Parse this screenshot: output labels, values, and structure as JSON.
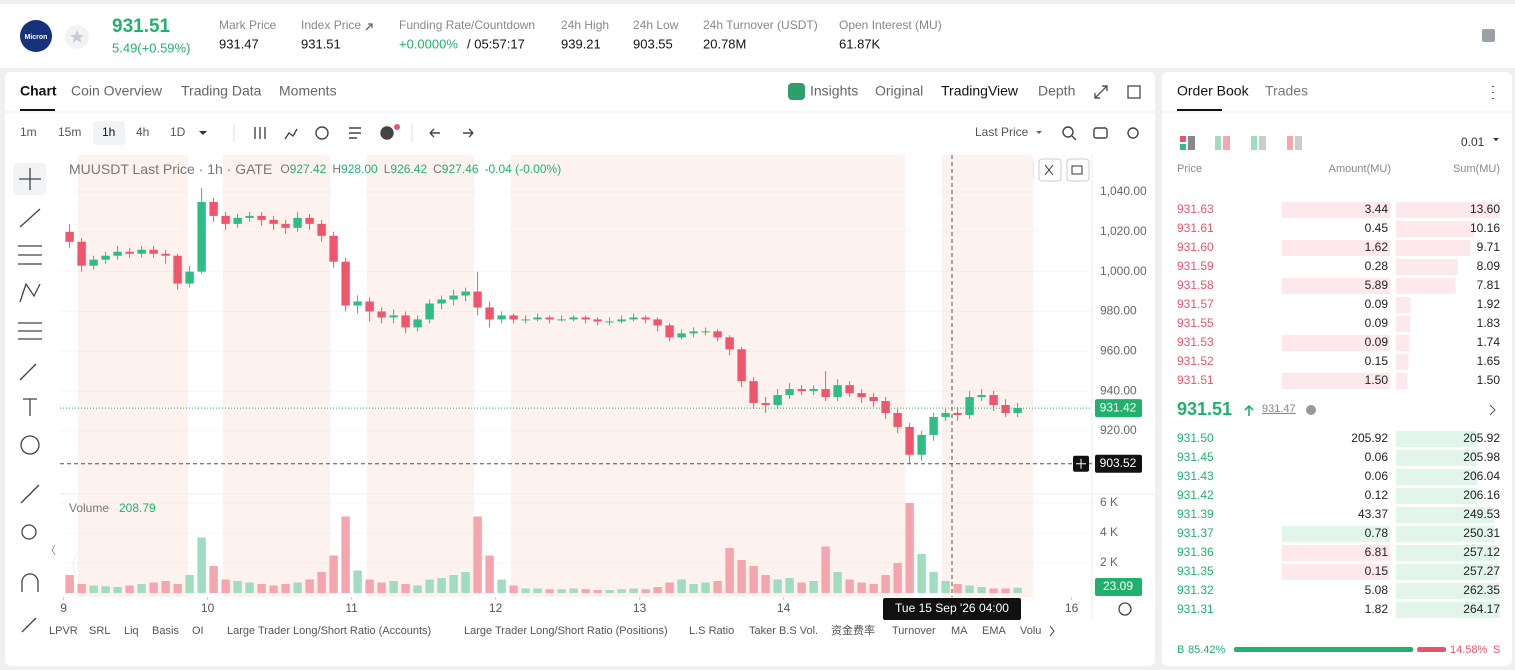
{
  "header": {
    "logo": "Micron",
    "price": "931.51",
    "change": "5.49(+0.59%)",
    "stats": [
      {
        "label": "Mark Price",
        "value": "931.47"
      },
      {
        "label": "Index Price",
        "value": "931.51"
      },
      {
        "label": "Funding Rate/Countdown",
        "value": "+0.0000%",
        "value2": "/ 05:57:17"
      },
      {
        "label": "24h High",
        "value": "939.21"
      },
      {
        "label": "24h Low",
        "value": "903.55"
      },
      {
        "label": "24h Turnover (USDT)",
        "value": "20.78M"
      },
      {
        "label": "Open Interest (MU)",
        "value": "61.87K"
      }
    ]
  },
  "chart_panel": {
    "tabs": [
      "Chart",
      "Coin Overview",
      "Trading Data",
      "Moments"
    ],
    "view_tabs": [
      "Insights",
      "Original",
      "TradingView",
      "Depth"
    ],
    "intervals": [
      "1m",
      "15m",
      "1h",
      "4h",
      "1D"
    ],
    "price_source": "Last Price",
    "legend": {
      "symbol": "MUUSDT Last Price · 1h · GATE",
      "o_label": "O",
      "o": "927.42",
      "h_label": "H",
      "h": "928.00",
      "l_label": "L",
      "l": "926.42",
      "c_label": "C",
      "c": "927.46",
      "change": "-0.04 (-0.00%)"
    },
    "volume_label": "Volume",
    "volume_value": "208.79",
    "last_price_tag": 931.42,
    "cursor_price_tag": 903.52,
    "volume_tag": "23.09",
    "crosshair_time": "Tue 15 Sep '26 04:00",
    "indicators": [
      "LPVR",
      "SRL",
      "Liq",
      "Basis",
      "OI",
      "Large Trader Long/Short Ratio (Accounts)",
      "Large Trader Long/Short Ratio (Positions)",
      "L.S Ratio",
      "Taker B.S Vol.",
      "资金费率",
      "Turnover",
      "MA",
      "EMA",
      "Volu"
    ]
  },
  "chart_data": {
    "type": "candlestick",
    "x": [
      0,
      2,
      4,
      6,
      8,
      10,
      12,
      14,
      16,
      18,
      20,
      22,
      24,
      26,
      28,
      30,
      32,
      34,
      36,
      38,
      40,
      42,
      44,
      46,
      48,
      50,
      52,
      54,
      56,
      58,
      60,
      62,
      64,
      66,
      68,
      70,
      72,
      74,
      76,
      78,
      80,
      82,
      84,
      86,
      88,
      90,
      92,
      94,
      96,
      98,
      100,
      102,
      104,
      106,
      108,
      110,
      112,
      114,
      116,
      118,
      120,
      122,
      124,
      126,
      128,
      130,
      132,
      134,
      136,
      138,
      140,
      142,
      144,
      146,
      148,
      150,
      152,
      154,
      156,
      158
    ],
    "open": [
      1020,
      1015,
      1003,
      1006,
      1008,
      1010,
      1009,
      1011,
      1009,
      1008,
      994,
      1000,
      1035,
      1028,
      1024,
      1027,
      1028,
      1026,
      1024,
      1022,
      1027,
      1024,
      1018,
      1005,
      983,
      985,
      980,
      977,
      978,
      972,
      976,
      984,
      986,
      988,
      990,
      982,
      976,
      978,
      976,
      976,
      977,
      976,
      976,
      977,
      976,
      975,
      975,
      976,
      977,
      976,
      973,
      967,
      969,
      970,
      970,
      967,
      961,
      945,
      934,
      933,
      938,
      941,
      940,
      941,
      937,
      943,
      939,
      937,
      935,
      929,
      922,
      908,
      918,
      927,
      929,
      928,
      937,
      938,
      933,
      929
    ],
    "high": [
      1024,
      1017,
      1008,
      1010,
      1013,
      1012,
      1013,
      1013,
      1011,
      1009,
      1003,
      1042,
      1037,
      1030,
      1029,
      1030,
      1030,
      1028,
      1026,
      1030,
      1029,
      1026,
      1020,
      1007,
      988,
      987,
      982,
      981,
      980,
      978,
      986,
      988,
      991,
      992,
      1000,
      985,
      980,
      979,
      978,
      979,
      978,
      978,
      978,
      978,
      977,
      977,
      978,
      979,
      978,
      977,
      974,
      971,
      972,
      972,
      971,
      968,
      962,
      947,
      937,
      941,
      944,
      943,
      943,
      950,
      946,
      945,
      941,
      939,
      937,
      931,
      924,
      920,
      929,
      931,
      932,
      940,
      941,
      940,
      936,
      934
    ],
    "low": [
      1012,
      1000,
      1001,
      1004,
      1006,
      1007,
      1007,
      1007,
      1004,
      991,
      992,
      999,
      1025,
      1021,
      1022,
      1025,
      1023,
      1021,
      1019,
      1020,
      1021,
      1015,
      1002,
      980,
      979,
      975,
      974,
      974,
      969,
      970,
      974,
      981,
      983,
      985,
      978,
      972,
      974,
      974,
      974,
      975,
      974,
      975,
      975,
      974,
      973,
      973,
      974,
      975,
      974,
      970,
      965,
      966,
      967,
      968,
      965,
      958,
      942,
      931,
      929,
      931,
      936,
      938,
      938,
      935,
      935,
      937,
      934,
      932,
      926,
      919,
      903.5,
      905,
      915,
      925,
      925,
      926,
      935,
      930,
      927,
      927
    ],
    "close": [
      1015,
      1003,
      1006,
      1008,
      1010,
      1009,
      1011,
      1009,
      1008,
      994,
      1000,
      1035,
      1028,
      1024,
      1027,
      1028,
      1026,
      1024,
      1022,
      1027,
      1024,
      1018,
      1005,
      983,
      985,
      980,
      977,
      978,
      972,
      976,
      984,
      986,
      988,
      990,
      982,
      976,
      978,
      976,
      976,
      977,
      976,
      976,
      977,
      976,
      975,
      975,
      976,
      977,
      976,
      973,
      967,
      969,
      970,
      970,
      967,
      961,
      945,
      934,
      933,
      938,
      941,
      940,
      941,
      937,
      943,
      939,
      937,
      935,
      929,
      922,
      908,
      918,
      927,
      929,
      928,
      937,
      938,
      933,
      929,
      931.51
    ],
    "xlim": [
      -0.6,
      171.4
    ],
    "xticks": [
      {
        "value": 0,
        "label": "9"
      },
      {
        "value": 24,
        "label": "10"
      },
      {
        "value": 48,
        "label": "11"
      },
      {
        "value": 72,
        "label": "12"
      },
      {
        "value": 96,
        "label": "13"
      },
      {
        "value": 120,
        "label": "14"
      },
      {
        "value": 168,
        "label": "16"
      }
    ],
    "ylim": [
      889.3,
      1058.6
    ],
    "yticks": [
      {
        "value": 920,
        "label": "920.00"
      },
      {
        "value": 940,
        "label": "940.00"
      },
      {
        "value": 960,
        "label": "960.00"
      },
      {
        "value": 980,
        "label": "980.00"
      },
      {
        "value": 1000,
        "label": "1,000.00"
      },
      {
        "value": 1020,
        "label": "1,020.00"
      },
      {
        "value": 1040,
        "label": "1,040.00"
      }
    ],
    "volume": {
      "values": [
        1200,
        600,
        500,
        450,
        400,
        500,
        600,
        700,
        800,
        600,
        1200,
        3700,
        1800,
        900,
        800,
        700,
        600,
        500,
        600,
        700,
        900,
        1400,
        2500,
        5100,
        1500,
        900,
        700,
        800,
        600,
        500,
        900,
        1000,
        1200,
        1400,
        5100,
        2500,
        900,
        500,
        300,
        300,
        250,
        250,
        300,
        250,
        200,
        200,
        250,
        300,
        250,
        400,
        700,
        900,
        600,
        700,
        800,
        3000,
        2200,
        1800,
        1200,
        900,
        1000,
        700,
        800,
        3100,
        1400,
        900,
        700,
        600,
        1200,
        2000,
        6000,
        2600,
        1400,
        800,
        600,
        500,
        400,
        300,
        300,
        350
      ],
      "ylim": [
        0,
        6400
      ],
      "yticks": [
        {
          "value": 2000,
          "label": "2 K"
        },
        {
          "value": 4000,
          "label": "4 K"
        },
        {
          "value": 6000,
          "label": "6 K"
        }
      ]
    }
  },
  "order_book": {
    "tabs": [
      "Order Book",
      "Trades"
    ],
    "precision": "0.01",
    "columns": [
      "Price",
      "Amount(MU)",
      "Sum(MU)"
    ],
    "asks": [
      [
        "931.63",
        "3.44",
        "13.60"
      ],
      [
        "931.61",
        "0.45",
        "10.16"
      ],
      [
        "931.60",
        "1.62",
        "9.71"
      ],
      [
        "931.59",
        "0.28",
        "8.09"
      ],
      [
        "931.58",
        "5.89",
        "7.81"
      ],
      [
        "931.57",
        "0.09",
        "1.92"
      ],
      [
        "931.55",
        "0.09",
        "1.83"
      ],
      [
        "931.53",
        "0.09",
        "1.74"
      ],
      [
        "931.52",
        "0.15",
        "1.65"
      ],
      [
        "931.51",
        "1.50",
        "1.50"
      ]
    ],
    "mid_price": "931.51",
    "mark_price": "931.47",
    "bids": [
      [
        "931.50",
        "205.92",
        "205.92"
      ],
      [
        "931.45",
        "0.06",
        "205.98"
      ],
      [
        "931.43",
        "0.06",
        "206.04"
      ],
      [
        "931.42",
        "0.12",
        "206.16"
      ],
      [
        "931.39",
        "43.37",
        "249.53"
      ],
      [
        "931.37",
        "0.78",
        "250.31"
      ],
      [
        "931.36",
        "6.81",
        "257.12"
      ],
      [
        "931.35",
        "0.15",
        "257.27"
      ],
      [
        "931.32",
        "5.08",
        "262.35"
      ],
      [
        "931.31",
        "1.82",
        "264.17"
      ]
    ],
    "buy_label": "B",
    "buy_ratio": "85.42%",
    "sell_ratio": "14.58%",
    "sell_label": "S"
  }
}
